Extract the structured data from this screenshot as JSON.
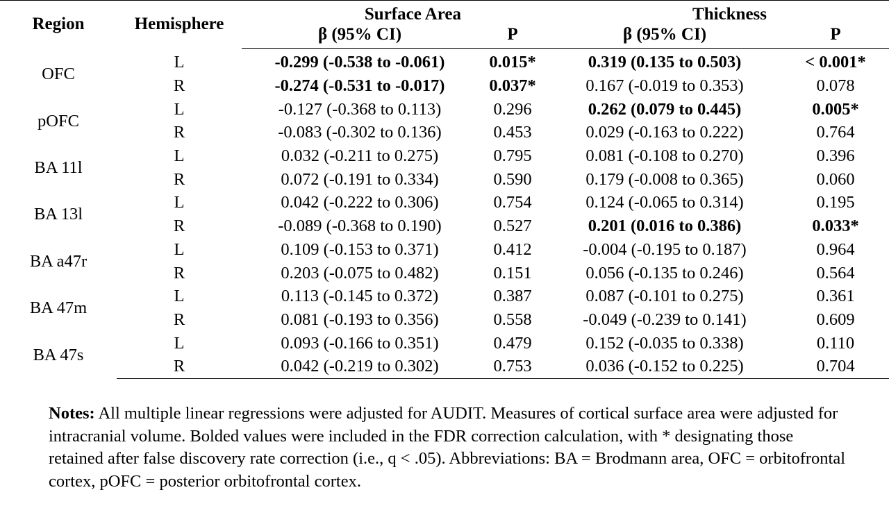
{
  "header": {
    "region": "Region",
    "hemisphere": "Hemisphere",
    "surface_area": "Surface Area",
    "thickness": "Thickness",
    "beta_ci": "β (95% CI)",
    "p": "P"
  },
  "rows": [
    {
      "region": "OFC",
      "hemi": "L",
      "sa_beta": "-0.299 (-0.538 to -0.061)",
      "sa_p": "0.015*",
      "th_beta": "0.319 (0.135 to 0.503)",
      "th_p": "< 0.001*",
      "sa_bold": true,
      "th_bold": true
    },
    {
      "region": "",
      "hemi": "R",
      "sa_beta": "-0.274 (-0.531 to -0.017)",
      "sa_p": "0.037*",
      "th_beta": "0.167 (-0.019 to 0.353)",
      "th_p": "0.078",
      "sa_bold": true,
      "th_bold": false
    },
    {
      "region": "pOFC",
      "hemi": "L",
      "sa_beta": "-0.127 (-0.368 to 0.113)",
      "sa_p": "0.296",
      "th_beta": "0.262 (0.079 to 0.445)",
      "th_p": "0.005*",
      "sa_bold": false,
      "th_bold": true
    },
    {
      "region": "",
      "hemi": "R",
      "sa_beta": "-0.083 (-0.302 to 0.136)",
      "sa_p": "0.453",
      "th_beta": "0.029 (-0.163 to 0.222)",
      "th_p": "0.764",
      "sa_bold": false,
      "th_bold": false
    },
    {
      "region": "BA 11l",
      "hemi": "L",
      "sa_beta": "0.032 (-0.211 to 0.275)",
      "sa_p": "0.795",
      "th_beta": "0.081 (-0.108 to 0.270)",
      "th_p": "0.396",
      "sa_bold": false,
      "th_bold": false
    },
    {
      "region": "",
      "hemi": "R",
      "sa_beta": "0.072 (-0.191 to 0.334)",
      "sa_p": "0.590",
      "th_beta": "0.179 (-0.008 to 0.365)",
      "th_p": "0.060",
      "sa_bold": false,
      "th_bold": false
    },
    {
      "region": "BA 13l",
      "hemi": "L",
      "sa_beta": "0.042 (-0.222 to 0.306)",
      "sa_p": "0.754",
      "th_beta": "0.124 (-0.065 to 0.314)",
      "th_p": "0.195",
      "sa_bold": false,
      "th_bold": false
    },
    {
      "region": "",
      "hemi": "R",
      "sa_beta": "-0.089 (-0.368 to 0.190)",
      "sa_p": "0.527",
      "th_beta": "0.201 (0.016 to 0.386)",
      "th_p": "0.033*",
      "sa_bold": false,
      "th_bold": true
    },
    {
      "region": "BA a47r",
      "hemi": "L",
      "sa_beta": "0.109 (-0.153 to 0.371)",
      "sa_p": "0.412",
      "th_beta": "-0.004 (-0.195 to 0.187)",
      "th_p": "0.964",
      "sa_bold": false,
      "th_bold": false
    },
    {
      "region": "",
      "hemi": "R",
      "sa_beta": "0.203 (-0.075 to 0.482)",
      "sa_p": "0.151",
      "th_beta": "0.056 (-0.135 to 0.246)",
      "th_p": "0.564",
      "sa_bold": false,
      "th_bold": false
    },
    {
      "region": "BA 47m",
      "hemi": "L",
      "sa_beta": "0.113 (-0.145 to 0.372)",
      "sa_p": "0.387",
      "th_beta": "0.087 (-0.101 to 0.275)",
      "th_p": "0.361",
      "sa_bold": false,
      "th_bold": false
    },
    {
      "region": "",
      "hemi": "R",
      "sa_beta": "0.081 (-0.193 to 0.356)",
      "sa_p": "0.558",
      "th_beta": "-0.049 (-0.239 to 0.141)",
      "th_p": "0.609",
      "sa_bold": false,
      "th_bold": false
    },
    {
      "region": "BA 47s",
      "hemi": "L",
      "sa_beta": "0.093 (-0.166 to 0.351)",
      "sa_p": "0.479",
      "th_beta": "0.152 (-0.035 to 0.338)",
      "th_p": "0.110",
      "sa_bold": false,
      "th_bold": false
    },
    {
      "region": "",
      "hemi": "R",
      "sa_beta": "0.042 (-0.219 to 0.302)",
      "sa_p": "0.753",
      "th_beta": "0.036 (-0.152 to 0.225)",
      "th_p": "0.704",
      "sa_bold": false,
      "th_bold": false
    }
  ],
  "notes": {
    "label": "Notes:",
    "text": " All multiple linear regressions were adjusted for AUDIT. Measures of cortical surface area were adjusted for intracranial volume. Bolded values were included in the FDR correction calculation, with * designating those retained after false discovery rate correction (i.e., q < .05). Abbreviations: BA = Brodmann area, OFC = orbitofrontal cortex, pOFC = posterior orbitofrontal cortex."
  }
}
